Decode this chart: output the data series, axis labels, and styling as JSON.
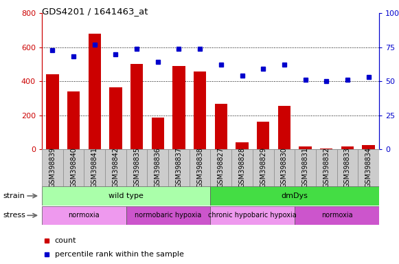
{
  "title": "GDS4201 / 1641463_at",
  "samples": [
    "GSM398839",
    "GSM398840",
    "GSM398841",
    "GSM398842",
    "GSM398835",
    "GSM398836",
    "GSM398837",
    "GSM398838",
    "GSM398827",
    "GSM398828",
    "GSM398829",
    "GSM398830",
    "GSM398831",
    "GSM398832",
    "GSM398833",
    "GSM398834"
  ],
  "counts": [
    440,
    340,
    680,
    365,
    500,
    185,
    490,
    455,
    265,
    40,
    160,
    255,
    15,
    5,
    15,
    25
  ],
  "percentile_ranks": [
    73,
    68,
    77,
    70,
    74,
    64,
    74,
    74,
    62,
    54,
    59,
    62,
    51,
    50,
    51,
    53
  ],
  "count_ylim": [
    0,
    800
  ],
  "percentile_ylim": [
    0,
    100
  ],
  "count_yticks": [
    0,
    200,
    400,
    600,
    800
  ],
  "percentile_yticks": [
    0,
    25,
    50,
    75,
    100
  ],
  "count_color": "#cc0000",
  "percentile_color": "#0000cc",
  "strain_segments": [
    {
      "text": "wild type",
      "start": 0,
      "end": 8,
      "color": "#aaffaa"
    },
    {
      "text": "dmDys",
      "start": 8,
      "end": 16,
      "color": "#44dd44"
    }
  ],
  "stress_segments": [
    {
      "text": "normoxia",
      "start": 0,
      "end": 4,
      "color": "#ee99ee"
    },
    {
      "text": "normobaric hypoxia",
      "start": 4,
      "end": 8,
      "color": "#cc55cc"
    },
    {
      "text": "chronic hypobaric hypoxia",
      "start": 8,
      "end": 12,
      "color": "#ee99ee"
    },
    {
      "text": "normoxia",
      "start": 12,
      "end": 16,
      "color": "#cc55cc"
    }
  ],
  "legend_count_label": "count",
  "legend_pct_label": "percentile rank within the sample",
  "bar_width": 0.6,
  "tick_label_size": 7,
  "sample_box_color": "#cccccc"
}
